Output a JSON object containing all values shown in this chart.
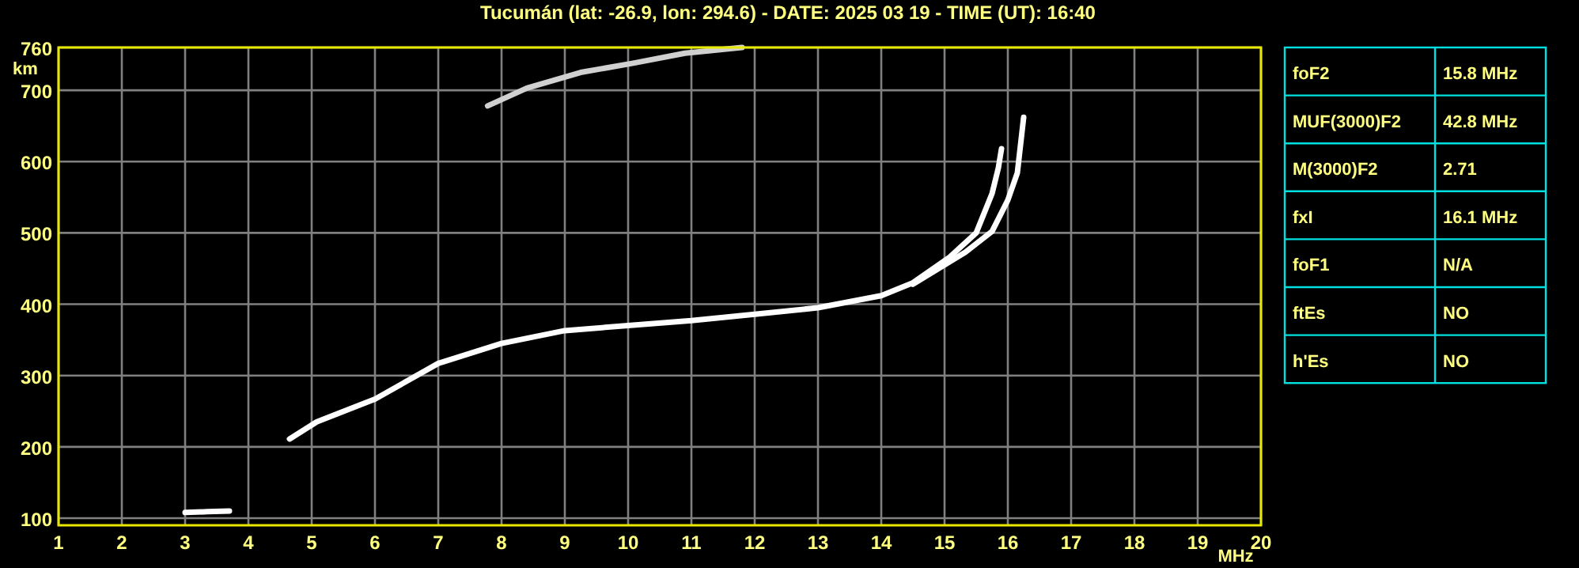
{
  "chart_data": [
    {
      "type": "line",
      "title": "Tucumán (lat: -26.9, lon: 294.6) - DATE: 2025 03 19 - TIME (UT): 16:40",
      "xlabel": "MHz",
      "ylabel": "km",
      "xlim": [
        1,
        20
      ],
      "ylim": [
        90,
        760
      ],
      "xticks": [
        1,
        2,
        3,
        4,
        5,
        6,
        7,
        8,
        9,
        10,
        11,
        12,
        13,
        14,
        15,
        16,
        17,
        18,
        19,
        20
      ],
      "yticks": [
        100,
        200,
        300,
        400,
        500,
        600,
        700,
        760
      ],
      "grid": true,
      "marker": "none",
      "line_style": "solid",
      "series": [
        {
          "color": "#ffffff",
          "x": [
            4.65,
            5.08,
            6.0,
            7.0,
            8.0,
            9.0,
            10.0,
            11.0,
            12.0,
            13.0,
            14.0,
            14.5,
            15.08,
            15.5,
            15.75,
            15.85,
            15.9
          ],
          "values": [
            211,
            235,
            267,
            317,
            345,
            363,
            370,
            377,
            386,
            395,
            412,
            430,
            466,
            500,
            555,
            591,
            618
          ]
        },
        {
          "color": "#ffffff",
          "x": [
            14.5,
            15.33,
            15.75,
            16.0,
            16.15,
            16.25
          ],
          "values": [
            428,
            473,
            502,
            546,
            584,
            662
          ]
        },
        {
          "color": "#d0d0d0",
          "x": [
            7.78,
            8.4,
            9.25,
            10.08,
            10.9,
            11.8
          ],
          "values": [
            678,
            703,
            725,
            738,
            752,
            760
          ]
        },
        {
          "color": "#ffffff",
          "x": [
            3.0,
            3.35,
            3.7
          ],
          "values": [
            108,
            109,
            110
          ]
        }
      ]
    },
    {
      "type": "other",
      "categories": [
        "foF2",
        "MUF(3000)F2",
        "M(3000)F2",
        "fxI",
        "foF1",
        "ftEs",
        "h'Es"
      ],
      "value_labels": [
        "15.8 MHz",
        "42.8 MHz",
        "2.71",
        "16.1 MHz",
        "N/A",
        "NO",
        "NO"
      ]
    }
  ]
}
